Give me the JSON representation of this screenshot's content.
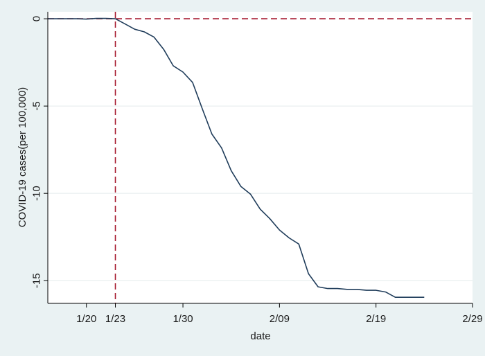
{
  "chart_data": {
    "type": "line",
    "xlabel": "date",
    "ylabel": "COVID-19 cases(per 100,000)",
    "x_ticks": [
      "1/20",
      "1/23",
      "1/30",
      "2/09",
      "2/19",
      "2/29"
    ],
    "y_ticks": [
      0,
      -5,
      -10,
      -15
    ],
    "xlim": [
      "2020-01-16",
      "2020-02-29"
    ],
    "ylim": [
      -16.3,
      0.4
    ],
    "reference_lines": [
      {
        "axis": "x",
        "value": "2020-01-23",
        "color": "#a6192e",
        "style": "dashed"
      },
      {
        "axis": "y",
        "value": 0,
        "color": "#a6192e",
        "style": "dashed"
      }
    ],
    "grid": {
      "horizontal": true,
      "vertical": false
    },
    "series": [
      {
        "color": "#1f3c5a",
        "x": [
          "2020-01-16",
          "2020-01-17",
          "2020-01-18",
          "2020-01-19",
          "2020-01-20",
          "2020-01-21",
          "2020-01-22",
          "2020-01-23",
          "2020-01-24",
          "2020-01-25",
          "2020-01-26",
          "2020-01-27",
          "2020-01-28",
          "2020-01-29",
          "2020-01-30",
          "2020-01-31",
          "2020-02-01",
          "2020-02-02",
          "2020-02-03",
          "2020-02-04",
          "2020-02-05",
          "2020-02-06",
          "2020-02-07",
          "2020-02-08",
          "2020-02-09",
          "2020-02-10",
          "2020-02-11",
          "2020-02-12",
          "2020-02-13",
          "2020-02-14",
          "2020-02-15",
          "2020-02-16",
          "2020-02-17",
          "2020-02-18",
          "2020-02-19",
          "2020-02-20",
          "2020-02-21",
          "2020-02-22",
          "2020-02-23",
          "2020-02-24"
        ],
        "y": [
          0,
          0,
          0,
          0,
          -0.02,
          0.02,
          0.02,
          0,
          -0.3,
          -0.6,
          -0.75,
          -1.05,
          -1.75,
          -2.7,
          -3.05,
          -3.65,
          -5.15,
          -6.6,
          -7.4,
          -8.7,
          -9.6,
          -10.05,
          -10.9,
          -11.45,
          -12.1,
          -12.55,
          -12.9,
          -14.6,
          -15.35,
          -15.45,
          -15.45,
          -15.5,
          -15.5,
          -15.55,
          -15.55,
          -15.65,
          -15.95,
          -15.95,
          -15.95,
          -15.95
        ]
      }
    ]
  }
}
